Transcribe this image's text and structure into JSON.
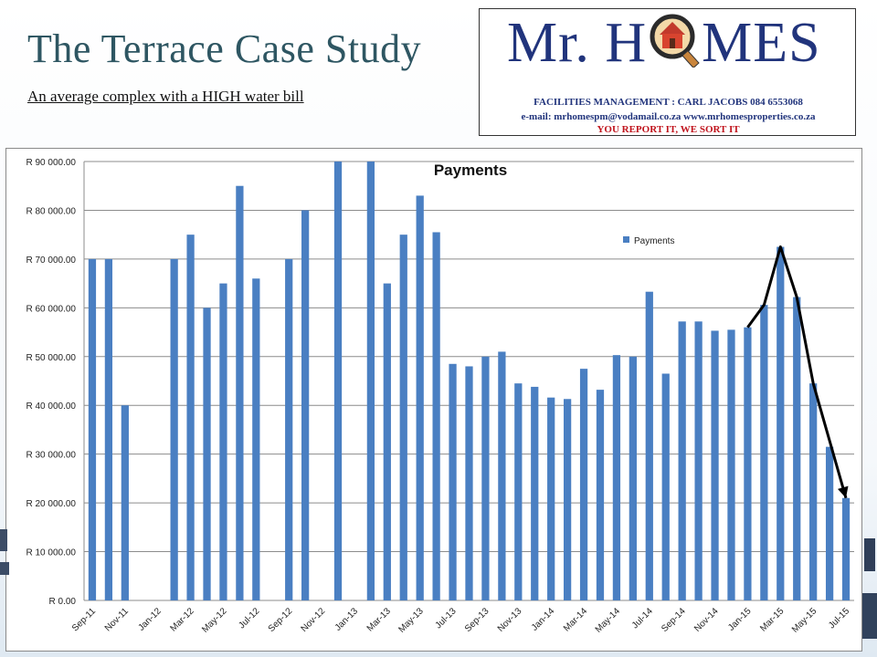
{
  "slide": {
    "title": "The Terrace Case Study",
    "subtitle": "An average complex with a HIGH water bill"
  },
  "logo": {
    "brand_left": "Mr. H",
    "brand_right": "MES",
    "line1": "FACILITIES MANAGEMENT : CARL JACOBS 084 6553068",
    "line2": "e-mail: mrhomespm@vodamail.co.za www.mrhomesproperties.co.za",
    "line3": "YOU REPORT IT, WE SORT IT",
    "colors": {
      "brand": "#21347c",
      "tagline": "#c0141d"
    }
  },
  "chart_data": {
    "type": "bar",
    "title": "Payments",
    "legend": {
      "entries": [
        "Payments"
      ],
      "position": "top-right"
    },
    "bar_color": "#4a7fc2",
    "grid": true,
    "ylim": [
      0,
      90000
    ],
    "y_ticks": [
      "R 0.00",
      "R 10 000.00",
      "R 20 000.00",
      "R 30 000.00",
      "R 40 000.00",
      "R 50 000.00",
      "R 60 000.00",
      "R 70 000.00",
      "R 80 000.00",
      "R 90 000.00"
    ],
    "categories": [
      "Sep-11",
      "Oct-11",
      "Nov-11",
      "Dec-11",
      "Jan-12",
      "Feb-12",
      "Mar-12",
      "Apr-12",
      "May-12",
      "Jun-12",
      "Jul-12",
      "Aug-12",
      "Sep-12",
      "Oct-12",
      "Nov-12",
      "Dec-12",
      "Jan-13",
      "Feb-13",
      "Mar-13",
      "Apr-13",
      "May-13",
      "Jun-13",
      "Jul-13",
      "Aug-13",
      "Sep-13",
      "Oct-13",
      "Nov-13",
      "Dec-13",
      "Jan-14",
      "Feb-14",
      "Mar-14",
      "Apr-14",
      "May-14",
      "Jun-14",
      "Jul-14",
      "Aug-14",
      "Sep-14",
      "Oct-14",
      "Nov-14",
      "Dec-14",
      "Jan-15",
      "Feb-15",
      "Mar-15",
      "Apr-15",
      "May-15",
      "Jun-15",
      "Jul-15"
    ],
    "x_tick_labels": [
      "Sep-11",
      "Nov-11",
      "Jan-12",
      "Mar-12",
      "May-12",
      "Jul-12",
      "Sep-12",
      "Nov-12",
      "Jan-13",
      "Mar-13",
      "May-13",
      "Jul-13",
      "Sep-13",
      "Nov-13",
      "Jan-14",
      "Mar-14",
      "May-14",
      "Jul-14",
      "Sep-14",
      "Nov-14",
      "Jan-15",
      "Mar-15",
      "May-15",
      "Jul-15"
    ],
    "series": [
      {
        "name": "Payments",
        "values": [
          70000,
          70000,
          40000,
          null,
          null,
          70000,
          75000,
          60000,
          65000,
          85000,
          66000,
          null,
          70000,
          80000,
          null,
          90000,
          null,
          90000,
          65000,
          75000,
          83000,
          75500,
          48500,
          48000,
          50000,
          51000,
          44500,
          43800,
          41600,
          41300,
          47500,
          43200,
          50300,
          50000,
          63300,
          46500,
          57200,
          57200,
          55300,
          55500,
          56000,
          60600,
          72500,
          62200,
          44500,
          31500,
          21000
        ]
      }
    ],
    "trend_annotation": {
      "description": "black arrow",
      "points_x": [
        "Jan-15",
        "Feb-15",
        "Mar-15",
        "Apr-15",
        "May-15",
        "Jul-15"
      ],
      "points_y": [
        56000,
        60600,
        72500,
        62200,
        44500,
        21000
      ]
    }
  }
}
